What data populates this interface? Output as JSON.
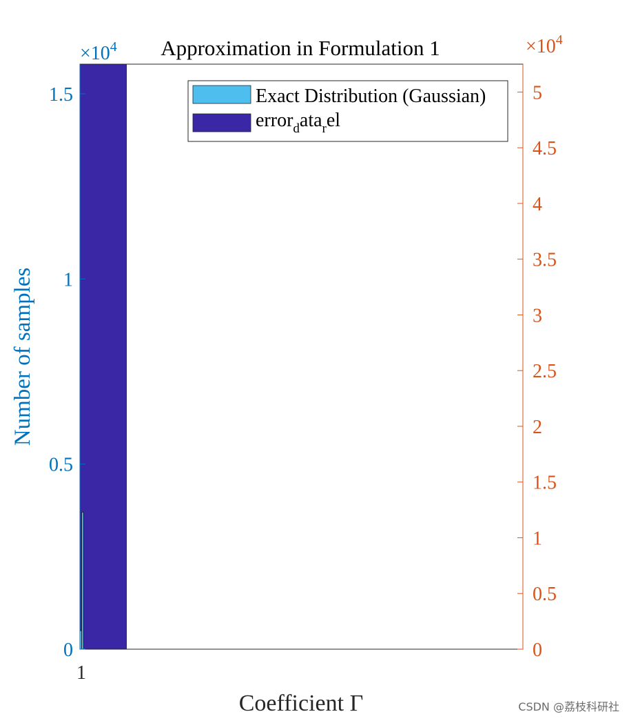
{
  "chart_data": {
    "type": "bar",
    "title": "Approximation in Formulation 1",
    "xlabel": "Coefficient Γ",
    "ylabel_left": "Number of samples",
    "ylabel_right": "",
    "x_tick_labels": [
      "1"
    ],
    "left_axis": {
      "exponent_label": "×10",
      "exponent_power": "4",
      "ylim": [
        0,
        1.58
      ],
      "ticks": [
        0,
        0.5,
        1,
        1.5
      ],
      "tick_labels": [
        "0",
        "0.5",
        "1",
        "1.5"
      ],
      "color": "#0072BD"
    },
    "right_axis": {
      "exponent_label": "×10",
      "exponent_power": "4",
      "ylim": [
        0,
        5.25
      ],
      "ticks": [
        0,
        0.5,
        1,
        1.5,
        2,
        2.5,
        3,
        3.5,
        4,
        4.5,
        5
      ],
      "tick_labels": [
        "0",
        "0.5",
        "1",
        "1.5",
        "2",
        "2.5",
        "3",
        "3.5",
        "4",
        "4.5",
        "5"
      ],
      "color": "#D95319"
    },
    "series": [
      {
        "name": "Exact Distribution (Gaussian)",
        "axis": "left",
        "color": "#4DBEEE",
        "bins": [
          {
            "x0": 0.0,
            "x1": 0.004,
            "value": 0.05
          },
          {
            "x0": 0.004,
            "x1": 0.008,
            "value": 0.37
          }
        ]
      },
      {
        "name": "error_data_rel",
        "axis": "left",
        "color": "#3A27A6",
        "bins": [
          {
            "x0": 0.0,
            "x1": 0.105,
            "value": 1.58
          }
        ]
      }
    ],
    "legend": {
      "position": "top-right",
      "entries": [
        {
          "label": "Exact Distribution (Gaussian)",
          "color": "#4DBEEE"
        },
        {
          "base": "error",
          "sub1": "d",
          "mid": "ata",
          "sub2": "r",
          "tail": "el",
          "color": "#3A27A6"
        }
      ]
    },
    "grid": false
  },
  "watermark": "CSDN @荔枝科研社"
}
